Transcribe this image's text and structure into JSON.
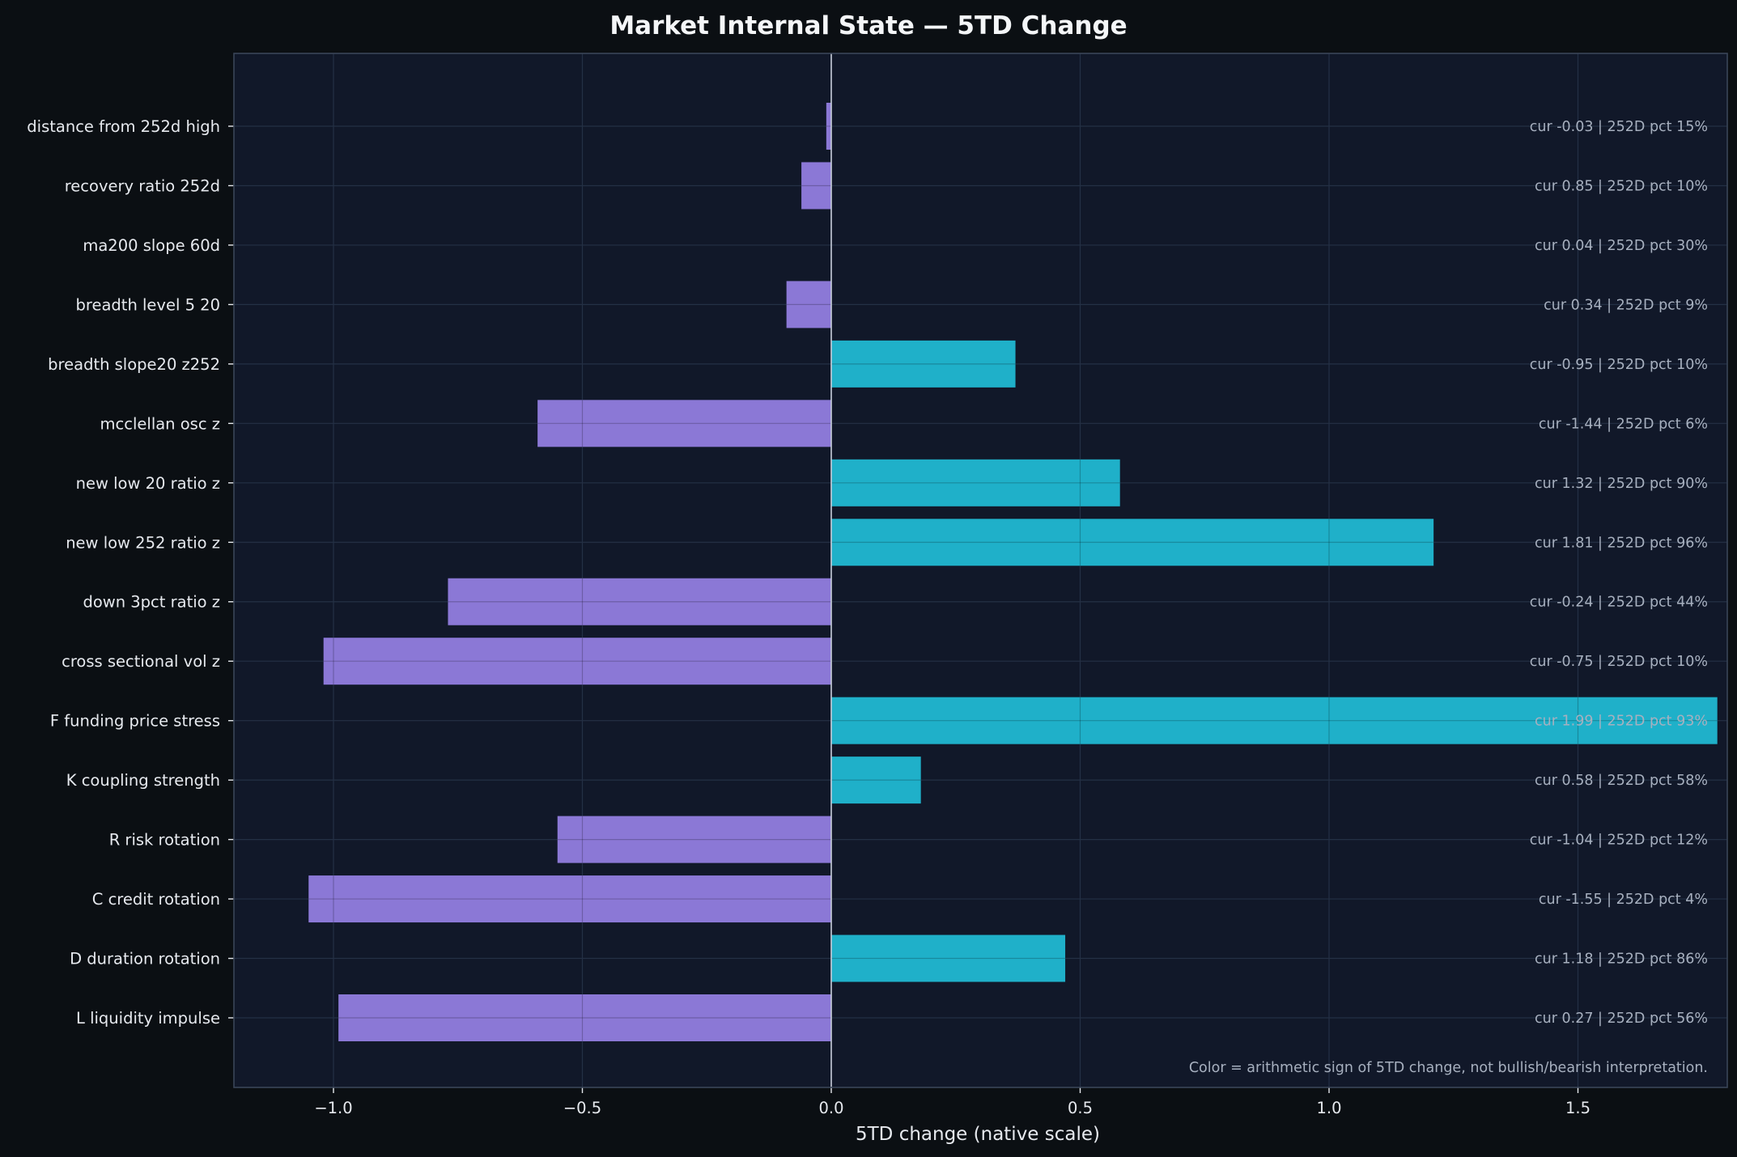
{
  "chart_data": {
    "type": "bar",
    "orientation": "horizontal",
    "title": "Market Internal State — 5TD Change",
    "xlabel": "5TD change (native scale)",
    "ylabel": "",
    "xlim": [
      -1.2,
      1.8
    ],
    "xticks": [
      -1.0,
      -0.5,
      0.0,
      0.5,
      1.0,
      1.5
    ],
    "xtick_labels": [
      "−1.0",
      "−0.5",
      "0.0",
      "0.5",
      "1.0",
      "1.5"
    ],
    "grid": true,
    "categories": [
      "distance from 252d high",
      "recovery ratio 252d",
      "ma200 slope 60d",
      "breadth level 5 20",
      "breadth slope20 z252",
      "mcclellan osc z",
      "new low 20 ratio z",
      "new low 252 ratio z",
      "down 3pct ratio z",
      "cross sectional vol z",
      "F funding price stress",
      "K coupling strength",
      "R risk rotation",
      "C credit rotation",
      "D duration rotation",
      "L liquidity impulse"
    ],
    "values": [
      -0.01,
      -0.06,
      0.0,
      -0.09,
      0.37,
      -0.59,
      0.58,
      1.21,
      -0.77,
      -1.02,
      1.78,
      0.18,
      -0.55,
      -1.05,
      0.47,
      -0.99
    ],
    "annotations": [
      "cur -0.03 | 252D pct 15%",
      "cur 0.85 | 252D pct 10%",
      "cur 0.04 | 252D pct 30%",
      "cur 0.34 | 252D pct 9%",
      "cur -0.95 | 252D pct 10%",
      "cur -1.44 | 252D pct 6%",
      "cur 1.32 | 252D pct 90%",
      "cur 1.81 | 252D pct 96%",
      "cur -0.24 | 252D pct 44%",
      "cur -0.75 | 252D pct 10%",
      "cur 1.99 | 252D pct 93%",
      "cur 0.58 | 252D pct 58%",
      "cur -1.04 | 252D pct 12%",
      "cur -1.55 | 252D pct 4%",
      "cur 1.18 | 252D pct 86%",
      "cur 0.27 | 252D pct 56%"
    ],
    "note": "Color = arithmetic sign of 5TD change, not bullish/bearish interpretation.",
    "colors": {
      "positive": "#1fb0c9",
      "negative": "#8b78d6",
      "background": "#0b0f13",
      "plot_background": "#111829",
      "grid": "#243045",
      "zero_line": "#c8cfdb",
      "axis_border": "#3a4558"
    }
  }
}
